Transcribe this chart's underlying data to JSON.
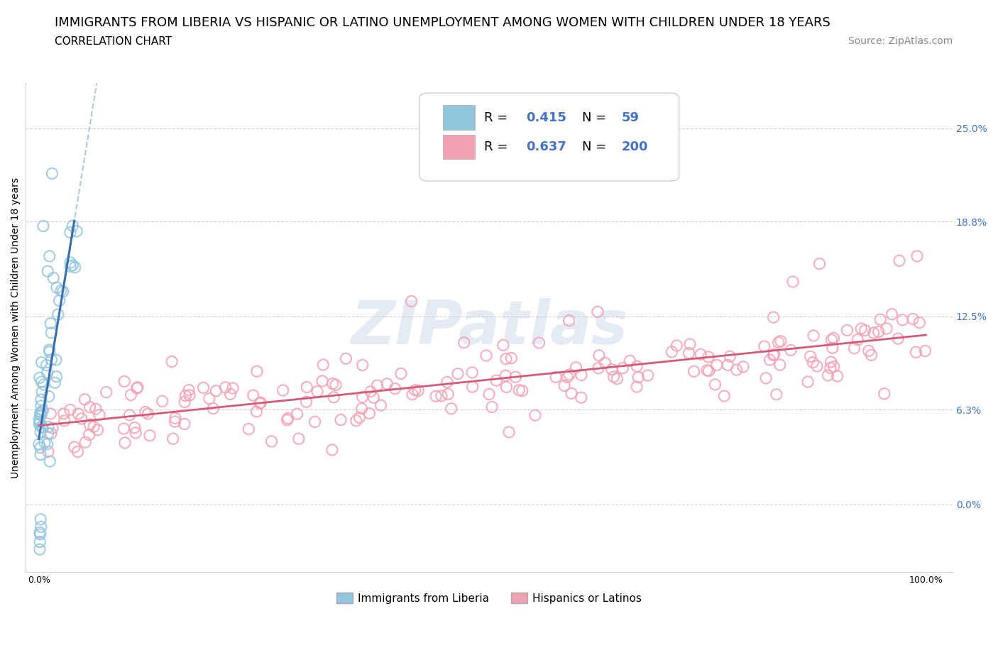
{
  "title_line1": "IMMIGRANTS FROM LIBERIA VS HISPANIC OR LATINO UNEMPLOYMENT AMONG WOMEN WITH CHILDREN UNDER 18 YEARS",
  "title_line2": "CORRELATION CHART",
  "source": "Source: ZipAtlas.com",
  "watermark": "ZIPatlas",
  "ylabel": "Unemployment Among Women with Children Under 18 years",
  "color_liberia": "#92C5DE",
  "color_hispanic": "#F4A0B5",
  "color_line_liberia": "#3A6EAA",
  "color_line_hispanic": "#D45A7A",
  "color_dash": "#A0B8D0",
  "legend_color": "#4472C4",
  "background_color": "#FFFFFF",
  "grid_color": "#D0D0D0",
  "ytick_vals": [
    0.0,
    6.3,
    12.5,
    18.8,
    25.0
  ],
  "ytick_labels": [
    "0.0%",
    "6.3%",
    "12.5%",
    "18.8%",
    "25.0%"
  ],
  "ylim_low": -4.5,
  "ylim_high": 28.0,
  "xlim_low": -1.5,
  "xlim_high": 103.0,
  "title_fontsize": 13,
  "subtitle_fontsize": 11,
  "source_fontsize": 10,
  "axis_label_fontsize": 10,
  "tick_fontsize": 9,
  "legend_fontsize": 13
}
